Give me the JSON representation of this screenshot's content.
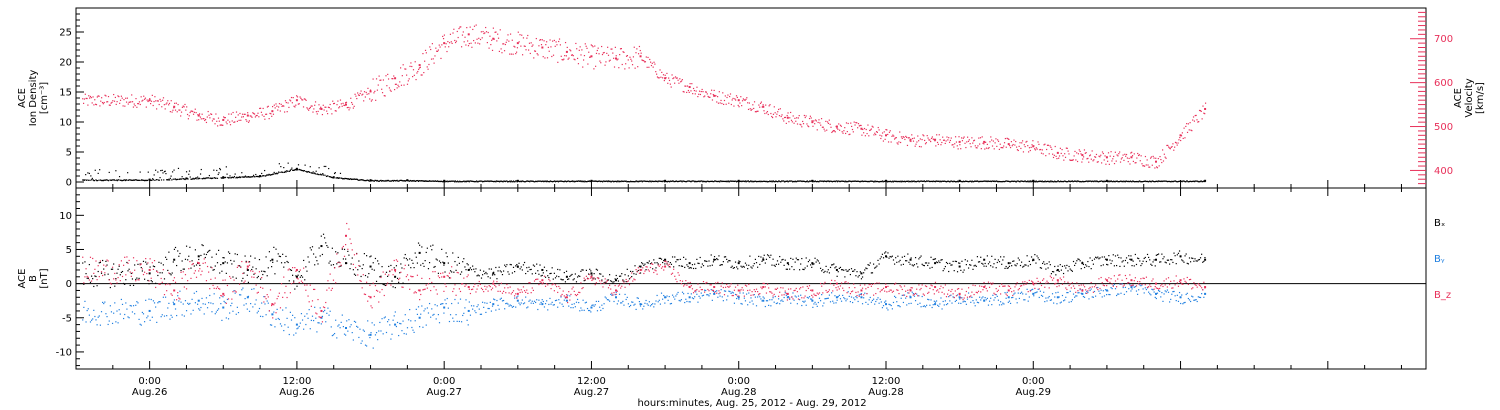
{
  "chart_data": [
    {
      "type": "scatter",
      "panel": "top",
      "ylabel": [
        "ACE",
        "Ion Density",
        "[cm⁻³]"
      ],
      "ylabel_right": [
        "ACE",
        "Velocity",
        "[km/s]"
      ],
      "ylim": [
        -1,
        29
      ],
      "ylim_right": [
        360,
        770
      ],
      "yticks": [
        0,
        5,
        10,
        15,
        20,
        25
      ],
      "yticks_right": [
        400,
        500,
        600,
        700
      ],
      "colors": {
        "density": "#000000",
        "velocity": "#e8305a"
      },
      "series": [
        {
          "key": "density",
          "x": [
            0,
            3,
            6,
            9,
            12,
            15,
            18,
            21,
            24,
            30,
            36,
            42,
            48,
            54,
            60,
            66,
            72,
            78,
            86
          ],
          "y": [
            0.4,
            0.6,
            0.8,
            1.0,
            2.2,
            0.8,
            0.3,
            0.3,
            0.2,
            0.2,
            0.2,
            0.2,
            0.2,
            0.2,
            0.2,
            0.2,
            0.2,
            0.2,
            0.2
          ]
        },
        {
          "key": "velocity",
          "x": [
            0,
            2,
            4,
            6,
            8,
            10,
            12,
            14,
            16,
            18,
            20,
            22,
            24,
            26,
            28,
            30,
            32,
            34,
            36,
            38,
            40,
            42,
            44,
            46,
            48,
            50,
            52,
            54,
            56,
            58,
            60,
            62,
            64,
            66,
            68,
            70,
            72,
            74,
            76,
            78,
            80,
            82,
            84,
            86
          ],
          "y": [
            560,
            545,
            525,
            515,
            525,
            535,
            560,
            540,
            550,
            580,
            610,
            640,
            690,
            710,
            700,
            690,
            680,
            670,
            660,
            655,
            660,
            610,
            590,
            570,
            560,
            545,
            520,
            510,
            500,
            495,
            480,
            470,
            470,
            465,
            465,
            460,
            455,
            440,
            435,
            430,
            430,
            420,
            480,
            540
          ]
        }
      ]
    },
    {
      "type": "scatter",
      "panel": "bottom",
      "ylabel": [
        "ACE",
        "B",
        "[nT]"
      ],
      "ylim": [
        -12.5,
        14
      ],
      "yticks": [
        -10,
        -5,
        0,
        5,
        10
      ],
      "legend": [
        "Bₓ",
        "Bᵧ",
        "B_z"
      ],
      "legend_placement": "right",
      "colors": {
        "bx": "#000000",
        "by": "#1f7fe0",
        "bz": "#e8305a"
      },
      "series": [
        {
          "key": "bx",
          "x": [
            0,
            2,
            4,
            6,
            8,
            10,
            12,
            14,
            16,
            18,
            20,
            22,
            24,
            26,
            28,
            30,
            32,
            34,
            36,
            38,
            40,
            42,
            44,
            46,
            48,
            50,
            52,
            54,
            56,
            58,
            60,
            62,
            64,
            66,
            68,
            70,
            72,
            74,
            76,
            78,
            80,
            82,
            84,
            86
          ],
          "y": [
            1.5,
            3.5,
            4.0,
            3.0,
            2.0,
            3.5,
            1.0,
            5.5,
            3.0,
            2.5,
            1.0,
            4.5,
            3.0,
            2.0,
            1.5,
            2.5,
            2.0,
            1.0,
            1.5,
            0.5,
            2.5,
            3.5,
            3.0,
            3.5,
            3.0,
            3.5,
            3.0,
            3.0,
            2.0,
            1.5,
            4.0,
            3.5,
            3.0,
            2.5,
            3.5,
            3.0,
            3.5,
            2.0,
            3.0,
            3.5,
            3.5,
            3.5,
            4.0,
            3.5
          ]
        },
        {
          "key": "by",
          "x": [
            0,
            2,
            4,
            6,
            8,
            10,
            12,
            14,
            16,
            18,
            20,
            22,
            24,
            26,
            28,
            30,
            32,
            34,
            36,
            38,
            40,
            42,
            44,
            46,
            48,
            50,
            52,
            54,
            56,
            58,
            60,
            62,
            64,
            66,
            68,
            70,
            72,
            74,
            76,
            78,
            80,
            82,
            84,
            86
          ],
          "y": [
            -4.0,
            -3.0,
            -2.5,
            -3.5,
            -2.0,
            -4.5,
            -6.0,
            -5.0,
            -6.5,
            -7.5,
            -6.0,
            -5.0,
            -3.5,
            -4.0,
            -3.0,
            -2.5,
            -3.0,
            -2.5,
            -3.5,
            -2.0,
            -3.0,
            -2.0,
            -2.0,
            -1.5,
            -2.0,
            -2.5,
            -2.0,
            -2.5,
            -2.0,
            -2.0,
            -3.0,
            -2.0,
            -3.0,
            -2.0,
            -2.5,
            -2.0,
            -1.5,
            -2.0,
            -1.5,
            -1.0,
            -0.5,
            -1.5,
            -2.0,
            -1.5
          ]
        },
        {
          "key": "bz",
          "x": [
            0,
            2,
            4,
            6,
            8,
            10,
            12,
            14,
            16,
            18,
            20,
            22,
            24,
            26,
            28,
            30,
            32,
            34,
            36,
            38,
            40,
            42,
            44,
            46,
            48,
            50,
            52,
            54,
            56,
            58,
            60,
            62,
            64,
            66,
            68,
            70,
            72,
            74,
            76,
            78,
            80,
            82,
            84,
            86
          ],
          "y": [
            2.0,
            -1.0,
            3.0,
            -1.5,
            2.5,
            -3.0,
            2.0,
            -4.0,
            7.0,
            -2.0,
            2.0,
            -1.0,
            1.0,
            -0.5,
            0.0,
            -1.5,
            0.5,
            -2.0,
            1.0,
            -1.0,
            2.0,
            2.5,
            -0.5,
            -0.5,
            -1.0,
            -0.5,
            -1.5,
            -1.0,
            0.0,
            -1.0,
            -0.5,
            -1.0,
            -0.5,
            -1.5,
            -0.5,
            -1.0,
            0.0,
            0.5,
            -1.0,
            0.5,
            0.5,
            0.0,
            0.5,
            -0.5
          ]
        }
      ]
    }
  ],
  "x_axis": {
    "xlim_hours": [
      -6,
      104
    ],
    "ticks": [
      {
        "h": 0,
        "time": "0:00",
        "date": "Aug.26"
      },
      {
        "h": 12,
        "time": "12:00",
        "date": "Aug.26"
      },
      {
        "h": 24,
        "time": "0:00",
        "date": "Aug.27"
      },
      {
        "h": 36,
        "time": "12:00",
        "date": "Aug.27"
      },
      {
        "h": 48,
        "time": "0:00",
        "date": "Aug.28"
      },
      {
        "h": 60,
        "time": "12:00",
        "date": "Aug.28"
      },
      {
        "h": 72,
        "time": "0:00",
        "date": "Aug.29"
      }
    ],
    "xlabel": "hours:minutes, Aug. 25, 2012 - Aug. 29, 2012"
  }
}
